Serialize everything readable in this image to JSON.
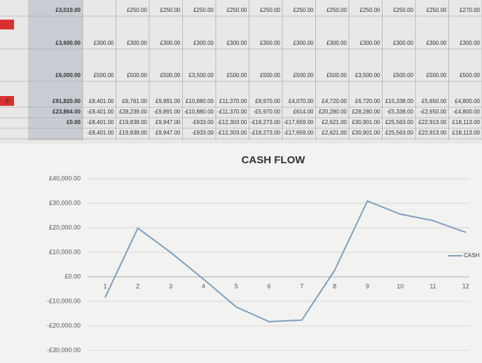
{
  "table": {
    "rows": [
      [
        "£3,019.00",
        "",
        "£250.00",
        "£250.00",
        "£250.00",
        "£250.00",
        "£250.00",
        "£250.00",
        "£250.00",
        "£250.00",
        "£250.00",
        "£250.00",
        "£270.00"
      ],
      [
        "£3,600.00",
        "£300.00",
        "£300.00",
        "£300.00",
        "£300.00",
        "£300.00",
        "£300.00",
        "£300.00",
        "£300.00",
        "£300.00",
        "£300.00",
        "£300.00",
        "£300.00"
      ],
      [
        "£6,000.00",
        "£500.00",
        "£500.00",
        "£500.00",
        "£3,500.00",
        "£500.00",
        "£500.00",
        "£500.00",
        "£500.00",
        "£3,500.00",
        "£500.00",
        "£500.00",
        "£500.00"
      ],
      [
        "£91,820.00",
        "£8,401.00",
        "£6,761.00",
        "£9,891.00",
        "£10,880.00",
        "£11,370.00",
        "£8,970.00",
        "£4,070.00",
        "£4,720.00",
        "£6,720.00",
        "£15,338.00",
        "£5,650.00",
        "£4,800.00"
      ],
      [
        "£23,864.00",
        "-£8,401.00",
        "£28,239.00",
        "-£9,891.00",
        "-£10,880.00",
        "-£11,370.00",
        "-£5,970.00",
        "£614.00",
        "£20,280.00",
        "£28,280.00",
        "-£5,338.00",
        "-£2,650.00",
        "-£4,800.00"
      ],
      [
        "£0.00",
        "-£8,401.00",
        "£19,838.00",
        "£9,947.00",
        "-£933.00",
        "-£12,303.00",
        "-£18,273.00",
        "-£17,659.00",
        "£2,621.00",
        "£30,901.00",
        "£25,563.00",
        "£22,913.00",
        "£18,113.00"
      ],
      [
        "",
        "-£8,401.00",
        "£19,838.00",
        "£9,947.00",
        "-£933.00",
        "-£12,303.00",
        "-£18,273.00",
        "-£17,659.00",
        "£2,621.00",
        "£30,901.00",
        "£25,563.00",
        "£22,913.00",
        "£18,113.00"
      ]
    ],
    "row_marker": "8"
  },
  "chart_data": {
    "type": "line",
    "title": "CASH FLOW",
    "categories": [
      "1",
      "2",
      "3",
      "4",
      "5",
      "6",
      "7",
      "8",
      "9",
      "10",
      "11",
      "12"
    ],
    "series": [
      {
        "name": "CASH",
        "color": "#7f9fbf",
        "values": [
          -8401,
          19838,
          9947,
          -933,
          -12303,
          -18273,
          -17659,
          2621,
          30901,
          25563,
          22913,
          18113
        ]
      }
    ],
    "ylim": [
      -30000,
      40000
    ],
    "yticks": [
      {
        "value": -30000,
        "label": "-£30,000.00"
      },
      {
        "value": -20000,
        "label": "-£20,000.00"
      },
      {
        "value": -10000,
        "label": "-£10,000.00"
      },
      {
        "value": 0,
        "label": "£0.00"
      },
      {
        "value": 10000,
        "label": "£10,000.00"
      },
      {
        "value": 20000,
        "label": "£20,000.00"
      },
      {
        "value": 30000,
        "label": "£30,000.00"
      },
      {
        "value": 40000,
        "label": "£40,000.00"
      }
    ],
    "grid": true,
    "legend": "right"
  }
}
